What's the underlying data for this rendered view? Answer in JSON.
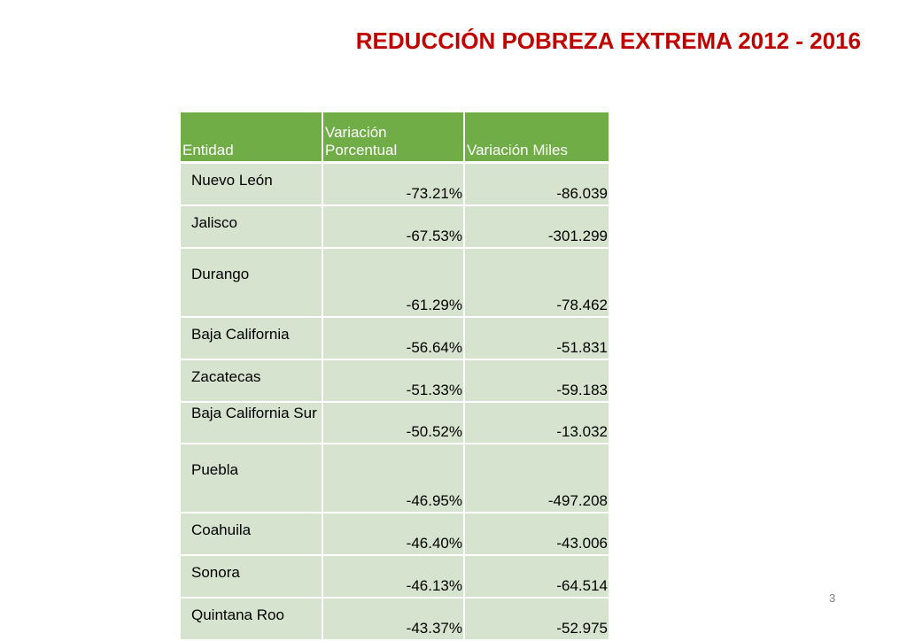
{
  "title": "REDUCCIÓN POBREZA EXTREMA 2012 - 2016",
  "table": {
    "headers": [
      "Entidad",
      "Variación Porcentual",
      "Variación Miles"
    ],
    "rows": [
      {
        "entidad": "Nuevo León",
        "porcentual": "-73.21%",
        "miles": "-86.039"
      },
      {
        "entidad": "Jalisco",
        "porcentual": "-67.53%",
        "miles": "-301.299"
      },
      {
        "entidad": "Durango",
        "porcentual": "-61.29%",
        "miles": "-78.462"
      },
      {
        "entidad": "Baja California",
        "porcentual": "-56.64%",
        "miles": "-51.831"
      },
      {
        "entidad": "Zacatecas",
        "porcentual": "-51.33%",
        "miles": "-59.183"
      },
      {
        "entidad": "Baja California Sur",
        "porcentual": "-50.52%",
        "miles": "-13.032"
      },
      {
        "entidad": "Puebla",
        "porcentual": "-46.95%",
        "miles": "-497.208"
      },
      {
        "entidad": "Coahuila",
        "porcentual": "-46.40%",
        "miles": "-43.006"
      },
      {
        "entidad": "Sonora",
        "porcentual": "-46.13%",
        "miles": "-64.514"
      },
      {
        "entidad": "Quintana Roo",
        "porcentual": "-43.37%",
        "miles": "-52.975"
      }
    ]
  },
  "page_number": "3",
  "colors": {
    "title": "#c00000",
    "header_bg": "#70ad47",
    "row_bg": "#d6e3cf"
  }
}
